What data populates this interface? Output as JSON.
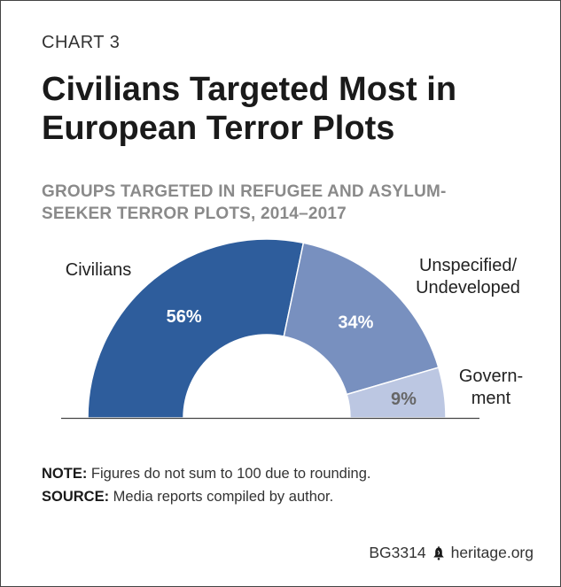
{
  "header": {
    "chart_number": "CHART 3",
    "title": "Civilians Targeted Most in European Terror Plots",
    "subtitle": "GROUPS TARGETED IN REFUGEE AND ASYLUM-SEEKER TERROR PLOTS, 2014–2017"
  },
  "chart_data": {
    "type": "pie",
    "variant": "semicircle-donut",
    "title": "GROUPS TARGETED IN REFUGEE AND ASYLUM-SEEKER TERROR PLOTS, 2014–2017",
    "categories": [
      "Civilians",
      "Unspecified/ Undeveloped",
      "Govern- ment"
    ],
    "values": [
      56,
      34,
      9
    ],
    "value_labels": [
      "56%",
      "34%",
      "9%"
    ],
    "category_label_lines": [
      [
        "Civilians"
      ],
      [
        "Unspecified/",
        "Undeveloped"
      ],
      [
        "Govern-",
        "ment"
      ]
    ],
    "colors": [
      "#2e5d9c",
      "#7890bf",
      "#bcc7e2"
    ],
    "value_label_colors": [
      "#ffffff",
      "#ffffff",
      "#666666"
    ]
  },
  "notes": {
    "note_label": "NOTE:",
    "note_text": " Figures do not sum to 100 due to rounding.",
    "source_label": "SOURCE:",
    "source_text": " Media reports compiled by author."
  },
  "footer": {
    "code": "BG3314",
    "site": "heritage.org",
    "logo_icon": "liberty-bell-icon"
  }
}
